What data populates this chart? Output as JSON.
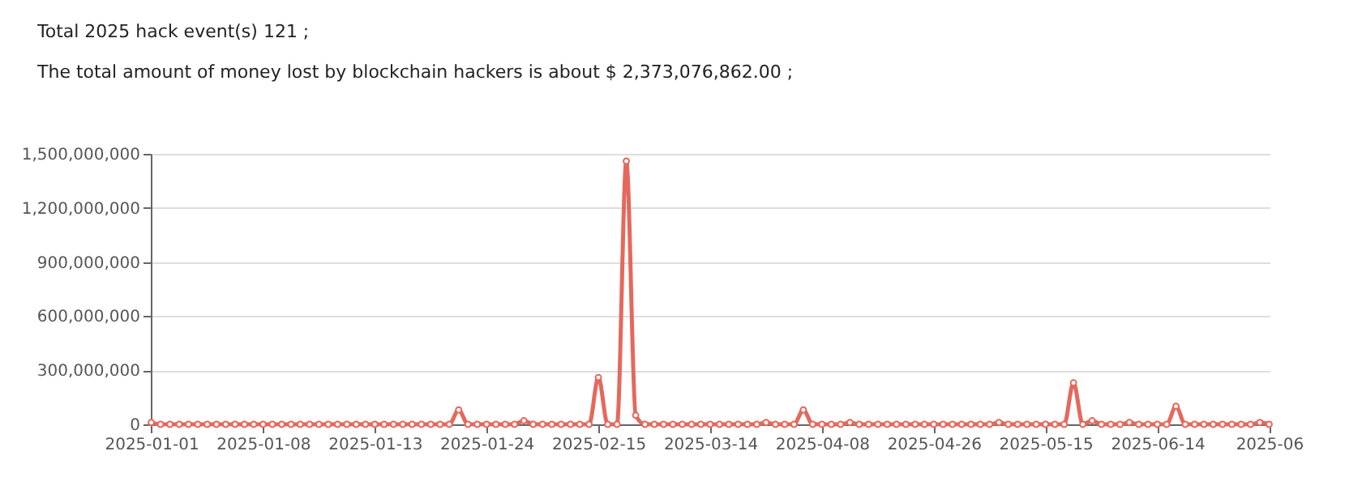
{
  "chart_data": {
    "type": "line",
    "title": "Total 2025 hack event(s) 121 ;",
    "subtitle": "The total amount of money lost by blockchain hackers is about $ 2,373,076,862.00 ;",
    "categories": [
      "2025-01-01",
      null,
      null,
      null,
      null,
      null,
      null,
      null,
      null,
      null,
      null,
      null,
      "2025-01-08",
      null,
      null,
      null,
      null,
      null,
      null,
      null,
      null,
      null,
      null,
      null,
      "2025-01-13",
      null,
      null,
      null,
      null,
      null,
      null,
      null,
      null,
      null,
      null,
      null,
      "2025-01-24",
      null,
      null,
      null,
      null,
      null,
      null,
      null,
      null,
      null,
      null,
      null,
      "2025-02-15",
      null,
      null,
      null,
      null,
      null,
      null,
      null,
      null,
      null,
      null,
      null,
      "2025-03-14",
      null,
      null,
      null,
      null,
      null,
      null,
      null,
      null,
      null,
      null,
      null,
      "2025-04-08",
      null,
      null,
      null,
      null,
      null,
      null,
      null,
      null,
      null,
      null,
      null,
      "2025-04-26",
      null,
      null,
      null,
      null,
      null,
      null,
      null,
      null,
      null,
      null,
      null,
      "2025-05-15",
      null,
      null,
      null,
      null,
      null,
      null,
      null,
      null,
      null,
      null,
      null,
      "2025-06-14",
      null,
      null,
      null,
      null,
      null,
      null,
      null,
      null,
      null,
      null,
      null,
      "2025-06"
    ],
    "series": [
      {
        "color": "#e5685c",
        "values": [
          10000000,
          0,
          0,
          0,
          0,
          0,
          0,
          0,
          0,
          0,
          0,
          0,
          0,
          0,
          0,
          0,
          0,
          0,
          0,
          0,
          0,
          0,
          0,
          0,
          0,
          0,
          0,
          0,
          0,
          0,
          0,
          0,
          0,
          80000000,
          0,
          0,
          0,
          0,
          0,
          0,
          20000000,
          0,
          0,
          0,
          0,
          0,
          0,
          0,
          260000000,
          0,
          0,
          1460000000,
          50000000,
          0,
          0,
          0,
          0,
          0,
          0,
          0,
          0,
          0,
          0,
          0,
          0,
          0,
          10000000,
          0,
          0,
          0,
          80000000,
          0,
          0,
          0,
          0,
          10000000,
          0,
          0,
          0,
          0,
          0,
          0,
          0,
          0,
          0,
          0,
          0,
          0,
          0,
          0,
          0,
          10000000,
          0,
          0,
          0,
          0,
          0,
          0,
          0,
          230000000,
          0,
          20000000,
          0,
          0,
          0,
          10000000,
          0,
          0,
          0,
          0,
          100000000,
          0,
          0,
          0,
          0,
          0,
          0,
          0,
          0,
          10000000,
          0
        ]
      }
    ],
    "ylim": [
      0,
      1500000000
    ],
    "yticks": [
      0,
      {
        "value": 300000000,
        "label": "300,000,000"
      },
      {
        "value": 600000000,
        "label": "600,000,000"
      },
      {
        "value": 900000000,
        "label": "900,000,000"
      },
      {
        "value": 1200000000,
        "label": "1,200,000,000"
      },
      {
        "value": 1500000000,
        "label": "1,500,000,000"
      }
    ],
    "grid": "y",
    "marker": "circle",
    "line_style": "solid"
  }
}
